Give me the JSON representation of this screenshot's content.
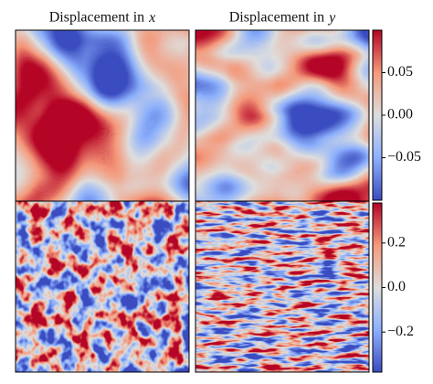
{
  "chart_data": [
    {
      "type": "heatmap",
      "colormap": "coolwarm",
      "titles": [
        {
          "text": "Displacement in",
          "variable": "x"
        },
        {
          "text": "Displacement in",
          "variable": "y"
        }
      ],
      "clim": [
        -0.1,
        0.1
      ],
      "cticks": [
        0.05,
        {
          "value": 0,
          "label": "0.00"
        },
        {
          "value": -0.05,
          "label": "−0.05"
        }
      ]
    },
    {
      "type": "heatmap",
      "colormap": "coolwarm",
      "clim": [
        -0.38,
        0.38
      ],
      "cticks": [
        0.2,
        {
          "value": 0,
          "label": "0.0"
        },
        {
          "value": -0.2,
          "label": "−0.2"
        }
      ]
    }
  ]
}
